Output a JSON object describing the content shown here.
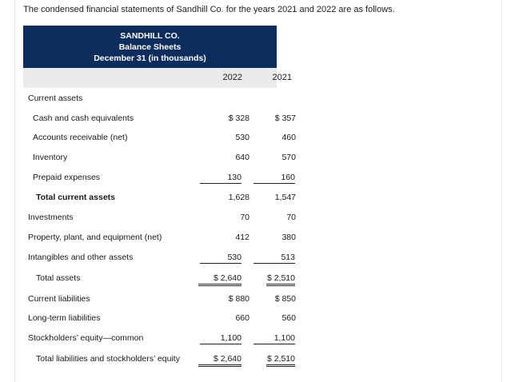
{
  "intro": "The condensed financial statements of Sandhill Co. for the years 2021 and 2022 are as follows.",
  "header": {
    "company": "SANDHILL CO.",
    "statement": "Balance Sheets",
    "period": "December 31 (in thousands)"
  },
  "columns": {
    "y2022": "2022",
    "y2021": "2021"
  },
  "rows": {
    "current_assets": {
      "label": "Current assets"
    },
    "cash": {
      "label": "Cash and cash equivalents",
      "v2022": "$ 328",
      "v2021": "$ 357"
    },
    "ar": {
      "label": "Accounts receivable (net)",
      "v2022": "530",
      "v2021": "460"
    },
    "inventory": {
      "label": "Inventory",
      "v2022": "640",
      "v2021": "570"
    },
    "prepaid": {
      "label": "Prepaid expenses",
      "v2022": "130",
      "v2021": "160"
    },
    "total_current": {
      "label": "Total current assets",
      "v2022": "1,628",
      "v2021": "1,547"
    },
    "investments": {
      "label": "Investments",
      "v2022": "70",
      "v2021": "70"
    },
    "ppe": {
      "label": "Property, plant, and equipment (net)",
      "v2022": "412",
      "v2021": "380"
    },
    "intangibles": {
      "label": "Intangibles and other assets",
      "v2022": "530",
      "v2021": "513"
    },
    "total_assets": {
      "label": "Total assets",
      "v2022": "$ 2,640",
      "v2021": "$ 2,510"
    },
    "current_liab": {
      "label": "Current liabilities",
      "v2022": "$ 880",
      "v2021": "$ 850"
    },
    "longterm_liab": {
      "label": "Long-term liabilities",
      "v2022": "660",
      "v2021": "560"
    },
    "equity": {
      "label": "Stockholders’ equity—common",
      "v2022": "1,100",
      "v2021": "1,100"
    },
    "total_le": {
      "label": "Total liabilities and stockholders’ equity",
      "v2022": "$ 2,640",
      "v2021": "$ 2,510"
    }
  }
}
